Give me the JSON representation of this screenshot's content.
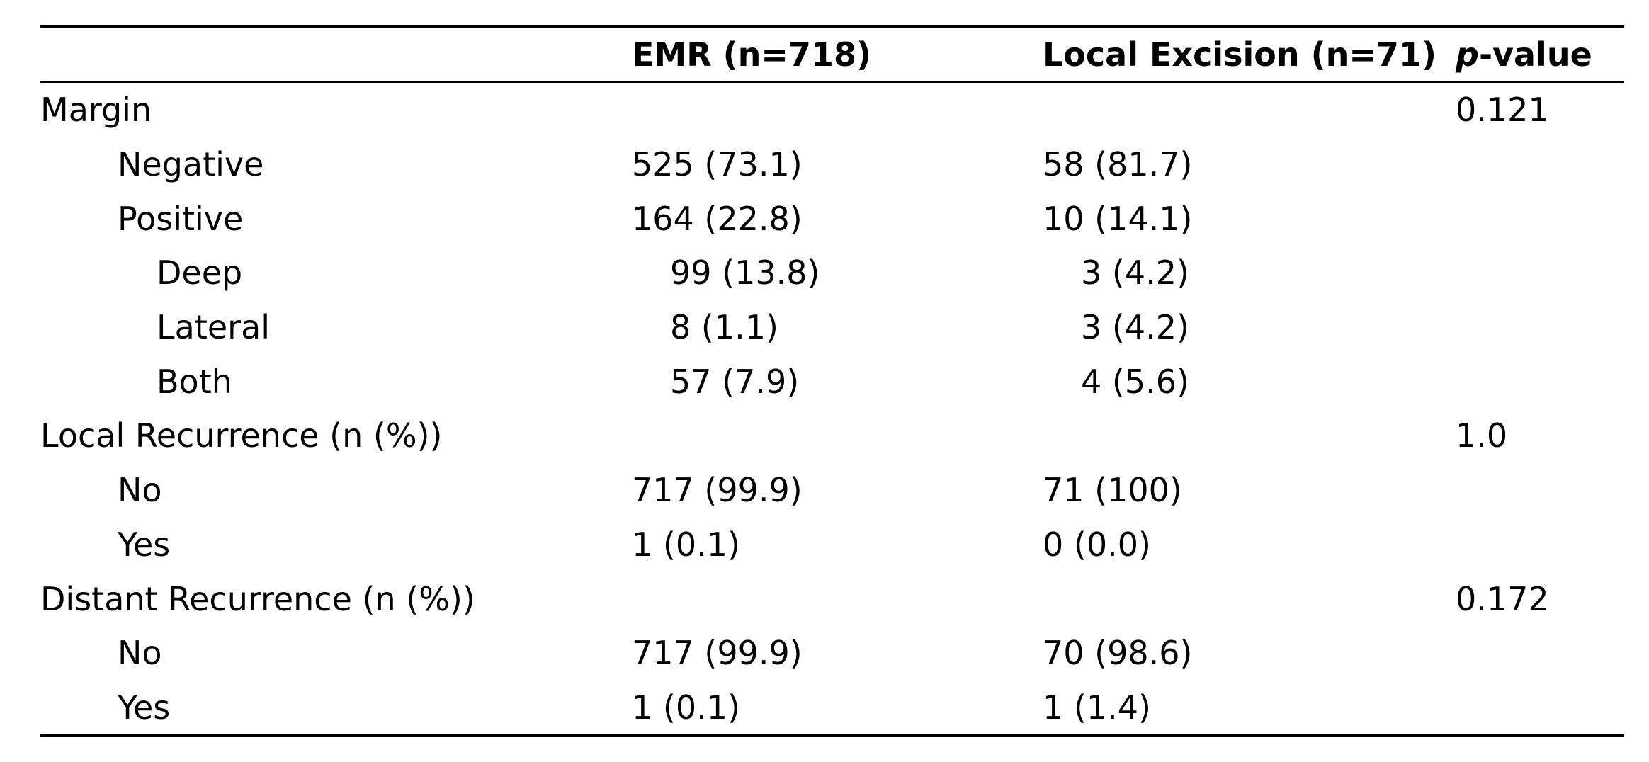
{
  "header": {
    "col1": "",
    "col2": "EMR (n=718)",
    "col3": "Local Excision (n=71)",
    "col4_italic": "p",
    "col4_rest": "-value"
  },
  "rows": [
    {
      "label": "Margin",
      "level": 0,
      "emr": "",
      "le": "",
      "p": "0.121"
    },
    {
      "label": "Negative",
      "level": 1,
      "emr": "525 (73.1)",
      "le": "58 (81.7)",
      "p": ""
    },
    {
      "label": "Positive",
      "level": 1,
      "emr": "164 (22.8)",
      "le": "10 (14.1)",
      "p": ""
    },
    {
      "label": "Deep",
      "level": 2,
      "emr": "99 (13.8)",
      "le": "3 (4.2)",
      "p": ""
    },
    {
      "label": "Lateral",
      "level": 2,
      "emr": "8 (1.1)",
      "le": "3 (4.2)",
      "p": ""
    },
    {
      "label": "Both",
      "level": 2,
      "emr": "57 (7.9)",
      "le": "4 (5.6)",
      "p": ""
    },
    {
      "label": "Local Recurrence (n (%))",
      "level": 0,
      "emr": "",
      "le": "",
      "p": "1.0"
    },
    {
      "label": "No",
      "level": 1,
      "emr": "717 (99.9)",
      "le": "71 (100)",
      "p": ""
    },
    {
      "label": "Yes",
      "level": 1,
      "emr": "1 (0.1)",
      "le": "0 (0.0)",
      "p": ""
    },
    {
      "label": "Distant Recurrence (n (%))",
      "level": 0,
      "emr": "",
      "le": "",
      "p": "0.172"
    },
    {
      "label": "No",
      "level": 1,
      "emr": "717 (99.9)",
      "le": "70 (98.6)",
      "p": ""
    },
    {
      "label": "Yes",
      "level": 1,
      "emr": "1 (0.1)",
      "le": "1 (1.4)",
      "p": ""
    }
  ]
}
